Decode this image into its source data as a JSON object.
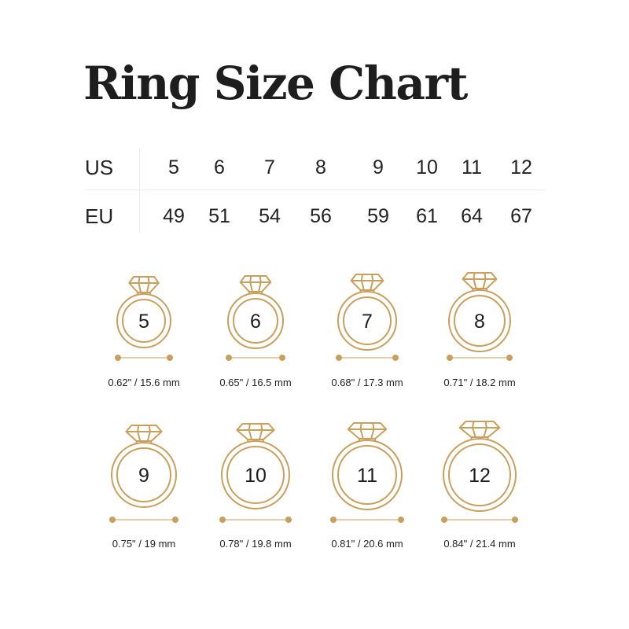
{
  "title": "Ring Size Chart",
  "table": {
    "row_labels": [
      "US",
      "EU"
    ],
    "us": [
      "5",
      "6",
      "7",
      "8",
      "9",
      "10",
      "11",
      "12"
    ],
    "eu": [
      "49",
      "51",
      "54",
      "56",
      "59",
      "61",
      "64",
      "67"
    ]
  },
  "accent_color": "#c99f5c",
  "rings": [
    {
      "size": "5",
      "label": "0.62\" / 15.6 mm"
    },
    {
      "size": "6",
      "label": "0.65\" / 16.5 mm"
    },
    {
      "size": "7",
      "label": "0.68\" / 17.3 mm"
    },
    {
      "size": "8",
      "label": "0.71\" / 18.2 mm"
    },
    {
      "size": "9",
      "label": "0.75\" / 19 mm"
    },
    {
      "size": "10",
      "label": "0.78\" / 19.8 mm"
    },
    {
      "size": "11",
      "label": "0.81\" / 20.6 mm"
    },
    {
      "size": "12",
      "label": "0.84\" / 21.4 mm"
    }
  ]
}
